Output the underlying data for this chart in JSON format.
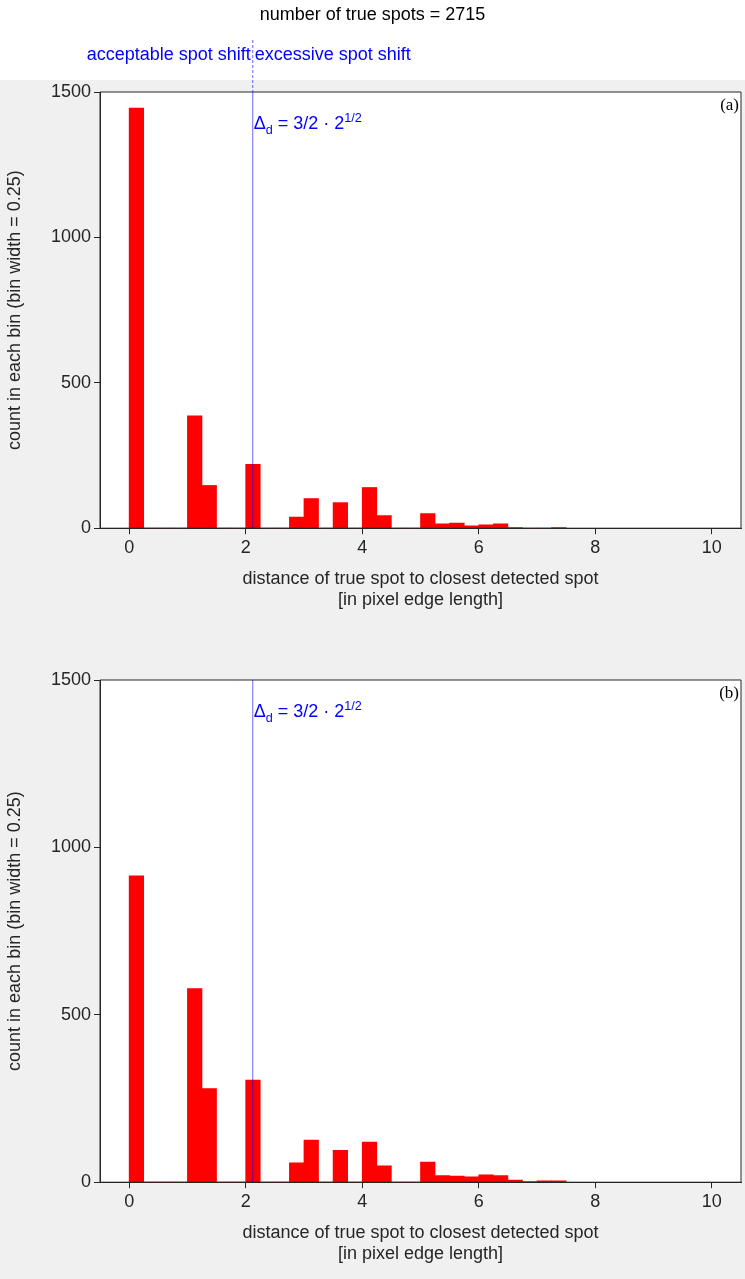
{
  "chart_data": [
    {
      "type": "histogram",
      "title": "number of true spots = 2715",
      "xlabel": "distance of true spot to closest detected spot\n[in pixel edge length]",
      "ylabel": "count in each bin (bin width = 0.25)",
      "bins": [
        0,
        0.25,
        0.5,
        0.75,
        1,
        1.25,
        1.5,
        1.75,
        2,
        2.25,
        2.5,
        2.75,
        3,
        3.25,
        3.5,
        3.75,
        4,
        4.25,
        4.5,
        4.75,
        5,
        5.25,
        5.5,
        5.75,
        6,
        6.25,
        6.5,
        6.75,
        7,
        7.25,
        7.5
      ],
      "values": [
        1445,
        0,
        0,
        0,
        386,
        147,
        0,
        0,
        220,
        0,
        0,
        38,
        102,
        0,
        88,
        0,
        140,
        43,
        0,
        0,
        50,
        15,
        18,
        8,
        12,
        15,
        2,
        0,
        0,
        2
      ],
      "color": "#ff0000",
      "xlim": [
        -0.5,
        10.5
      ],
      "xticks": [
        0,
        2,
        4,
        6,
        8,
        10
      ],
      "ylim": [
        0,
        1500
      ],
      "yticks": [
        0,
        500,
        1000,
        1500
      ],
      "ref_lines": [
        {
          "axis": "x",
          "value": 2.1213,
          "label": "Δ$_{d}$ = 3/2 · 2$^{1/2}$",
          "color": "#0000ff"
        }
      ],
      "annotations": [
        "acceptable spot shift",
        "excessive spot shift",
        "(a)"
      ]
    },
    {
      "type": "histogram",
      "xlabel": "distance of true spot to closest detected spot\n[in pixel edge length]",
      "ylabel": "count in each bin (bin width = 0.25)",
      "bins": [
        0,
        0.25,
        0.5,
        0.75,
        1,
        1.25,
        1.5,
        1.75,
        2,
        2.25,
        2.5,
        2.75,
        3,
        3.25,
        3.5,
        3.75,
        4,
        4.25,
        4.5,
        4.75,
        5,
        5.25,
        5.5,
        5.75,
        6,
        6.25,
        6.5,
        6.75,
        7,
        7.25,
        7.5
      ],
      "values": [
        915,
        0,
        0,
        0,
        578,
        280,
        0,
        0,
        305,
        0,
        0,
        58,
        126,
        0,
        95,
        0,
        120,
        49,
        0,
        0,
        60,
        20,
        18,
        16,
        22,
        20,
        6,
        2,
        4,
        4
      ],
      "color": "#ff0000",
      "xlim": [
        -0.5,
        10.5
      ],
      "xticks": [
        0,
        2,
        4,
        6,
        8,
        10
      ],
      "ylim": [
        0,
        1500
      ],
      "yticks": [
        0,
        500,
        1000,
        1500
      ],
      "ref_lines": [
        {
          "axis": "x",
          "value": 2.1213,
          "label": "Δ$_{d}$ = 3/2 · 2$^{1/2}$",
          "color": "#0000ff"
        }
      ],
      "annotations": [
        "(b)"
      ]
    }
  ]
}
